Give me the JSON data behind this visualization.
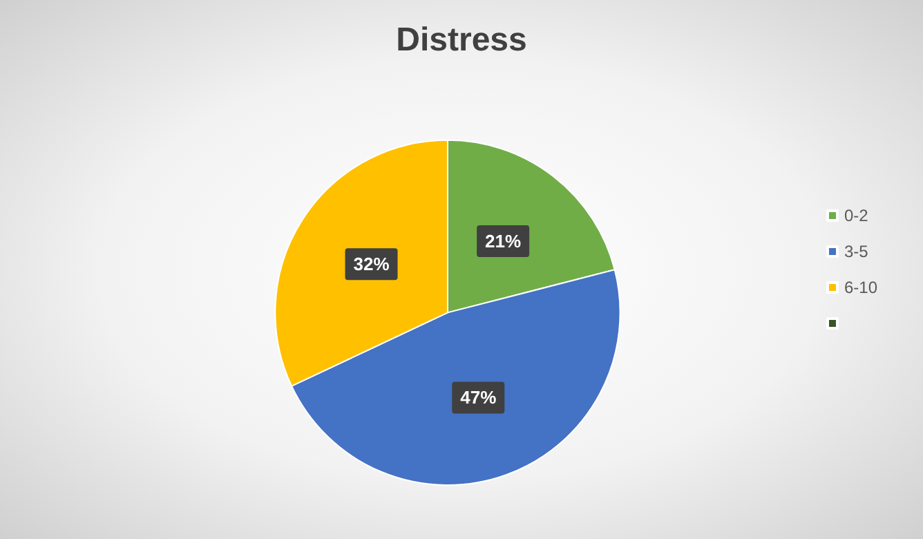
{
  "chart_data": {
    "type": "pie",
    "title": "Distress",
    "categories": [
      "0-2",
      "3-5",
      "6-10",
      null
    ],
    "values": [
      21,
      47,
      32,
      0
    ],
    "colors": [
      "#70ad47",
      "#4472c4",
      "#ffc000",
      "#375623"
    ],
    "value_labels": [
      "21%",
      "47%",
      "32%",
      null
    ],
    "legend": "right"
  }
}
